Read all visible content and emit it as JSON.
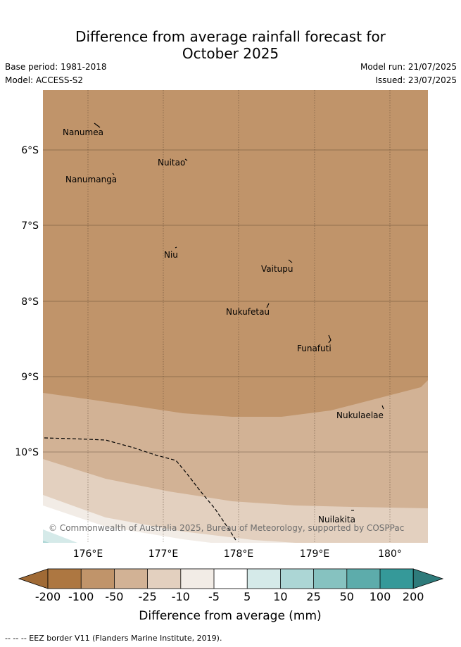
{
  "title_line1": "Difference from average rainfall forecast for",
  "title_line2": "October 2025",
  "base_period": "Base period: 1981-2018",
  "model": "Model: ACCESS-S2",
  "model_run": "Model run: 21/07/2025",
  "issued": "Issued: 23/07/2025",
  "copyright": "© Commonwealth of Australia 2025, Bureau of Meteorology, supported by COSPPac",
  "lat_labels": [
    "6°S",
    "7°S",
    "8°S",
    "9°S",
    "10°S"
  ],
  "lon_labels": [
    "176°E",
    "177°E",
    "178°E",
    "179°E",
    "180°"
  ],
  "islands": [
    {
      "name": "Nanumea"
    },
    {
      "name": "Nuitao"
    },
    {
      "name": "Nanumanga"
    },
    {
      "name": "Niu"
    },
    {
      "name": "Vaitupu"
    },
    {
      "name": "Nukufetau"
    },
    {
      "name": "Funafuti"
    },
    {
      "name": "Nukulaelae"
    },
    {
      "name": "Nuilakita"
    }
  ],
  "colorbar": {
    "label": "Difference from average (mm)",
    "ticks": [
      "-200",
      "-100",
      "-50",
      "-25",
      "-10",
      "-5",
      "5",
      "10",
      "25",
      "50",
      "100",
      "200"
    ],
    "colors": {
      "under": "#a06a35",
      "bins": [
        "#ad7741",
        "#c0946a",
        "#d2b295",
        "#e3d0bf",
        "#f2ece6",
        "#ffffff",
        "#d5eae9",
        "#acd6d5",
        "#86c2c0",
        "#5dacab",
        "#359999"
      ],
      "over": "#2e7b7b"
    }
  },
  "footnote": "-- -- -- EEZ border V11 (Flanders Marine Institute, 2019)."
}
